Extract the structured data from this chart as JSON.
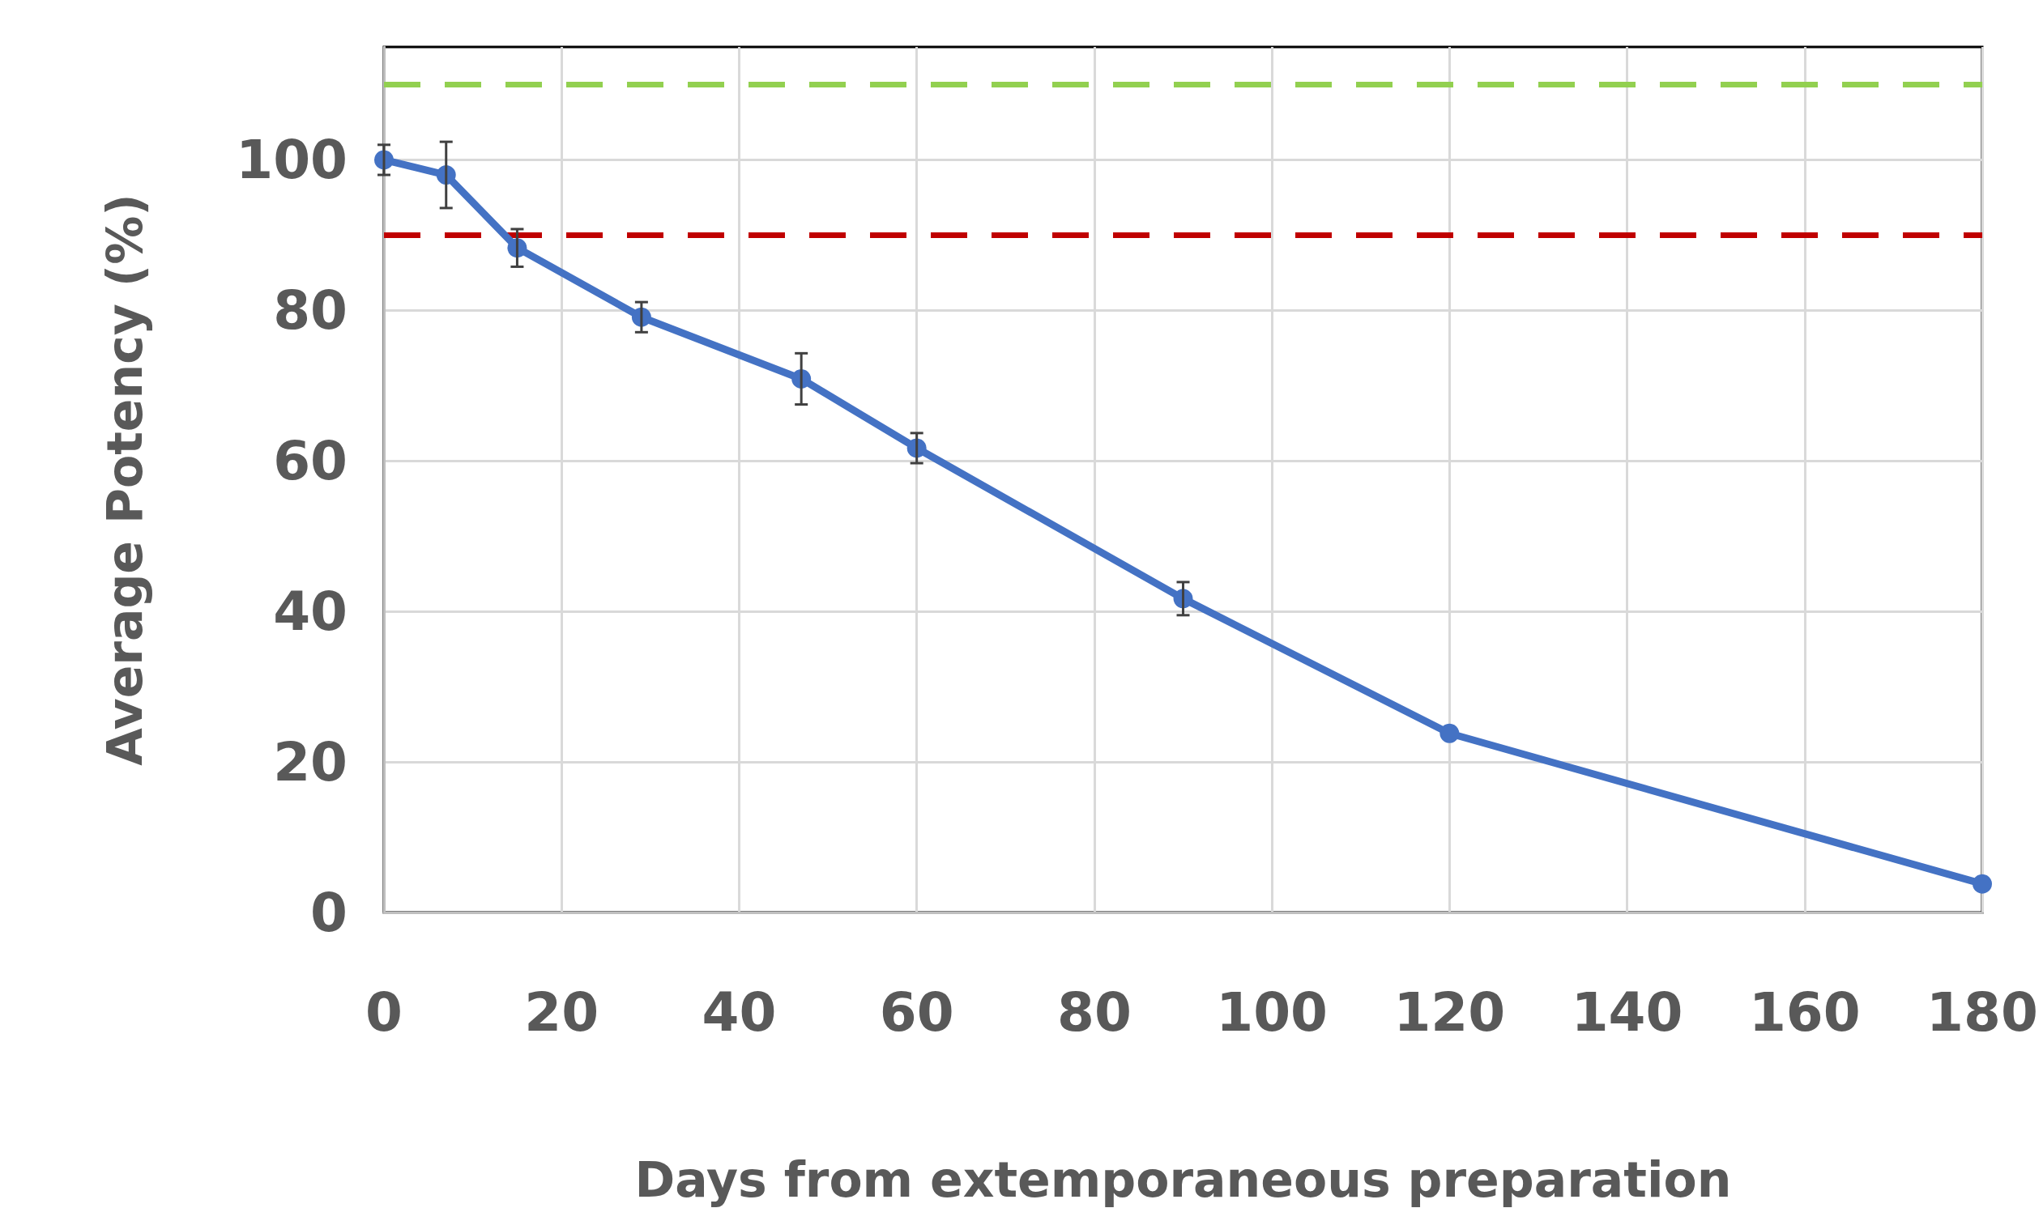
{
  "chart_data": {
    "type": "line",
    "xlabel": "Days from extemporaneous preparation",
    "ylabel": "Average Potency (%)",
    "series": [
      {
        "color": "#4472c4",
        "x": [
          0,
          7,
          15,
          29,
          47,
          60,
          90,
          120,
          180
        ],
        "values": [
          100,
          98,
          88.3,
          79.1,
          70.9,
          61.7,
          41.7,
          23.8,
          3.8
        ],
        "errors": [
          2,
          4.4,
          2.5,
          2,
          3.4,
          2,
          2.2,
          null,
          null
        ]
      }
    ],
    "xlim": [
      0,
      180
    ],
    "xticks": [
      0,
      20,
      40,
      60,
      80,
      100,
      120,
      140,
      160,
      180
    ],
    "ylim": [
      0,
      115
    ],
    "yticks": [
      0,
      20,
      40,
      60,
      80,
      100
    ],
    "ref_lines": [
      {
        "axis": "y",
        "value": 110,
        "color": "#92d050",
        "line_style": "dashed"
      },
      {
        "axis": "y",
        "value": 90,
        "color": "#c00000",
        "line_style": "dashed"
      }
    ],
    "grid": true,
    "marker": "circle",
    "line_style": "solid"
  }
}
